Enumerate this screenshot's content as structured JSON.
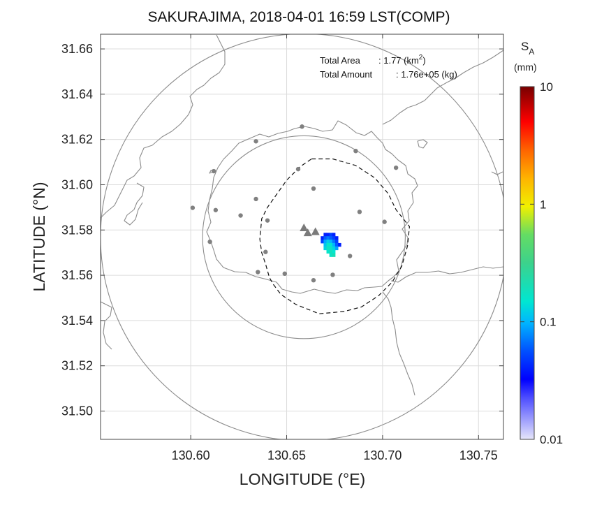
{
  "chart_data": {
    "type": "map",
    "title": "SAKURAJIMA, 2018-04-01 16:59 LST(COMP)",
    "xlabel": "LONGITUDE (°E)",
    "ylabel": "LATITUDE (°N)",
    "xlim": [
      130.553,
      130.763
    ],
    "ylim": [
      31.4875,
      31.6665
    ],
    "x_ticks": [
      130.6,
      130.65,
      130.7,
      130.75
    ],
    "x_tick_labels": [
      "130.60",
      "130.65",
      "130.70",
      "130.75"
    ],
    "y_ticks": [
      31.5,
      31.52,
      31.54,
      31.56,
      31.58,
      31.6,
      31.62,
      31.64,
      31.66
    ],
    "y_tick_labels": [
      "31.50",
      "31.52",
      "31.54",
      "31.56",
      "31.58",
      "31.60",
      "31.62",
      "31.64",
      "31.66"
    ],
    "grid": true,
    "annotations": {
      "area_label": "Total Area",
      "area_value": ": 1.77 (km",
      "area_sup": "2",
      "area_close": ")",
      "amount_label": "Total Amount",
      "amount_value": ": 1.76e+05 (kg)"
    },
    "colorbar": {
      "label_main": "S",
      "label_sub": "A",
      "unit": "(mm)",
      "scale": "log",
      "range": [
        0.01,
        10
      ],
      "ticks": [
        0.01,
        0.1,
        1,
        10
      ],
      "tick_labels": [
        "0.01",
        "0.1",
        "1",
        "10"
      ]
    },
    "vents": [
      {
        "lon": 130.659,
        "lat": 31.581
      },
      {
        "lon": 130.661,
        "lat": 31.5788
      },
      {
        "lon": 130.665,
        "lat": 31.5793
      }
    ],
    "stations": [
      {
        "lon": 130.658,
        "lat": 31.6257
      },
      {
        "lon": 130.634,
        "lat": 31.6192
      },
      {
        "lon": 130.686,
        "lat": 31.6149
      },
      {
        "lon": 130.612,
        "lat": 31.606
      },
      {
        "lon": 130.656,
        "lat": 31.6069
      },
      {
        "lon": 130.707,
        "lat": 31.6075
      },
      {
        "lon": 130.664,
        "lat": 31.5983
      },
      {
        "lon": 130.601,
        "lat": 31.5898
      },
      {
        "lon": 130.613,
        "lat": 31.5888
      },
      {
        "lon": 130.634,
        "lat": 31.5937
      },
      {
        "lon": 130.626,
        "lat": 31.5864
      },
      {
        "lon": 130.688,
        "lat": 31.588
      },
      {
        "lon": 130.701,
        "lat": 31.5836
      },
      {
        "lon": 130.64,
        "lat": 31.5842
      },
      {
        "lon": 130.61,
        "lat": 31.5748
      },
      {
        "lon": 130.639,
        "lat": 31.5703
      },
      {
        "lon": 130.683,
        "lat": 31.5685
      },
      {
        "lon": 130.635,
        "lat": 31.5614
      },
      {
        "lon": 130.649,
        "lat": 31.5607
      },
      {
        "lon": 130.664,
        "lat": 31.5578
      },
      {
        "lon": 130.674,
        "lat": 31.5602
      }
    ],
    "range_circles": [
      {
        "center_lon": 130.659,
        "center_lat": 31.5768,
        "radius_lat": 0.0448
      },
      {
        "center_lon": 130.659,
        "center_lat": 31.5768,
        "radius_lat": 0.0899
      }
    ],
    "dashed_boundary": [
      [
        130.663,
        31.6114
      ],
      [
        130.674,
        31.6114
      ],
      [
        130.686,
        31.6085
      ],
      [
        130.696,
        31.603
      ],
      [
        130.703,
        31.596
      ],
      [
        130.707,
        31.589
      ],
      [
        130.714,
        31.5815
      ],
      [
        130.713,
        31.573
      ],
      [
        130.71,
        31.564
      ],
      [
        130.705,
        31.557
      ],
      [
        130.698,
        31.551
      ],
      [
        130.689,
        31.546
      ],
      [
        130.68,
        31.544
      ],
      [
        130.667,
        31.543
      ],
      [
        130.655,
        31.547
      ],
      [
        130.647,
        31.5515
      ],
      [
        130.643,
        31.556
      ],
      [
        130.641,
        31.559
      ],
      [
        130.639,
        31.565
      ],
      [
        130.637,
        31.57
      ],
      [
        130.636,
        31.576
      ],
      [
        130.637,
        31.585
      ],
      [
        130.64,
        31.59
      ],
      [
        130.645,
        31.596
      ],
      [
        130.65,
        31.602
      ],
      [
        130.657,
        31.608
      ],
      [
        130.663,
        31.6114
      ]
    ],
    "deposit_cells": [
      {
        "lon": 130.67,
        "lat": 31.578,
        "value": 0.04
      },
      {
        "lon": 130.6715,
        "lat": 31.578,
        "value": 0.04
      },
      {
        "lon": 130.673,
        "lat": 31.578,
        "value": 0.05
      },
      {
        "lon": 130.6745,
        "lat": 31.578,
        "value": 0.04
      },
      {
        "lon": 130.6685,
        "lat": 31.5765,
        "value": 0.04
      },
      {
        "lon": 130.67,
        "lat": 31.5765,
        "value": 0.06
      },
      {
        "lon": 130.6715,
        "lat": 31.5765,
        "value": 0.07
      },
      {
        "lon": 130.673,
        "lat": 31.5765,
        "value": 0.06
      },
      {
        "lon": 130.6745,
        "lat": 31.5765,
        "value": 0.05
      },
      {
        "lon": 130.676,
        "lat": 31.5765,
        "value": 0.04
      },
      {
        "lon": 130.6685,
        "lat": 31.575,
        "value": 0.05
      },
      {
        "lon": 130.67,
        "lat": 31.575,
        "value": 0.09
      },
      {
        "lon": 130.6715,
        "lat": 31.575,
        "value": 0.12
      },
      {
        "lon": 130.673,
        "lat": 31.575,
        "value": 0.1
      },
      {
        "lon": 130.6745,
        "lat": 31.575,
        "value": 0.07
      },
      {
        "lon": 130.676,
        "lat": 31.575,
        "value": 0.05
      },
      {
        "lon": 130.67,
        "lat": 31.5735,
        "value": 0.11
      },
      {
        "lon": 130.6715,
        "lat": 31.5735,
        "value": 0.16
      },
      {
        "lon": 130.673,
        "lat": 31.5735,
        "value": 0.15
      },
      {
        "lon": 130.6745,
        "lat": 31.5735,
        "value": 0.1
      },
      {
        "lon": 130.676,
        "lat": 31.5735,
        "value": 0.06
      },
      {
        "lon": 130.6775,
        "lat": 31.5735,
        "value": 0.04
      },
      {
        "lon": 130.67,
        "lat": 31.572,
        "value": 0.13
      },
      {
        "lon": 130.6715,
        "lat": 31.572,
        "value": 0.18
      },
      {
        "lon": 130.673,
        "lat": 31.572,
        "value": 0.17
      },
      {
        "lon": 130.6745,
        "lat": 31.572,
        "value": 0.13
      },
      {
        "lon": 130.676,
        "lat": 31.572,
        "value": 0.09
      },
      {
        "lon": 130.6715,
        "lat": 31.5705,
        "value": 0.16
      },
      {
        "lon": 130.673,
        "lat": 31.5705,
        "value": 0.19
      },
      {
        "lon": 130.6745,
        "lat": 31.5705,
        "value": 0.15
      },
      {
        "lon": 130.673,
        "lat": 31.569,
        "value": 0.17
      },
      {
        "lon": 130.6745,
        "lat": 31.569,
        "value": 0.2
      }
    ]
  }
}
